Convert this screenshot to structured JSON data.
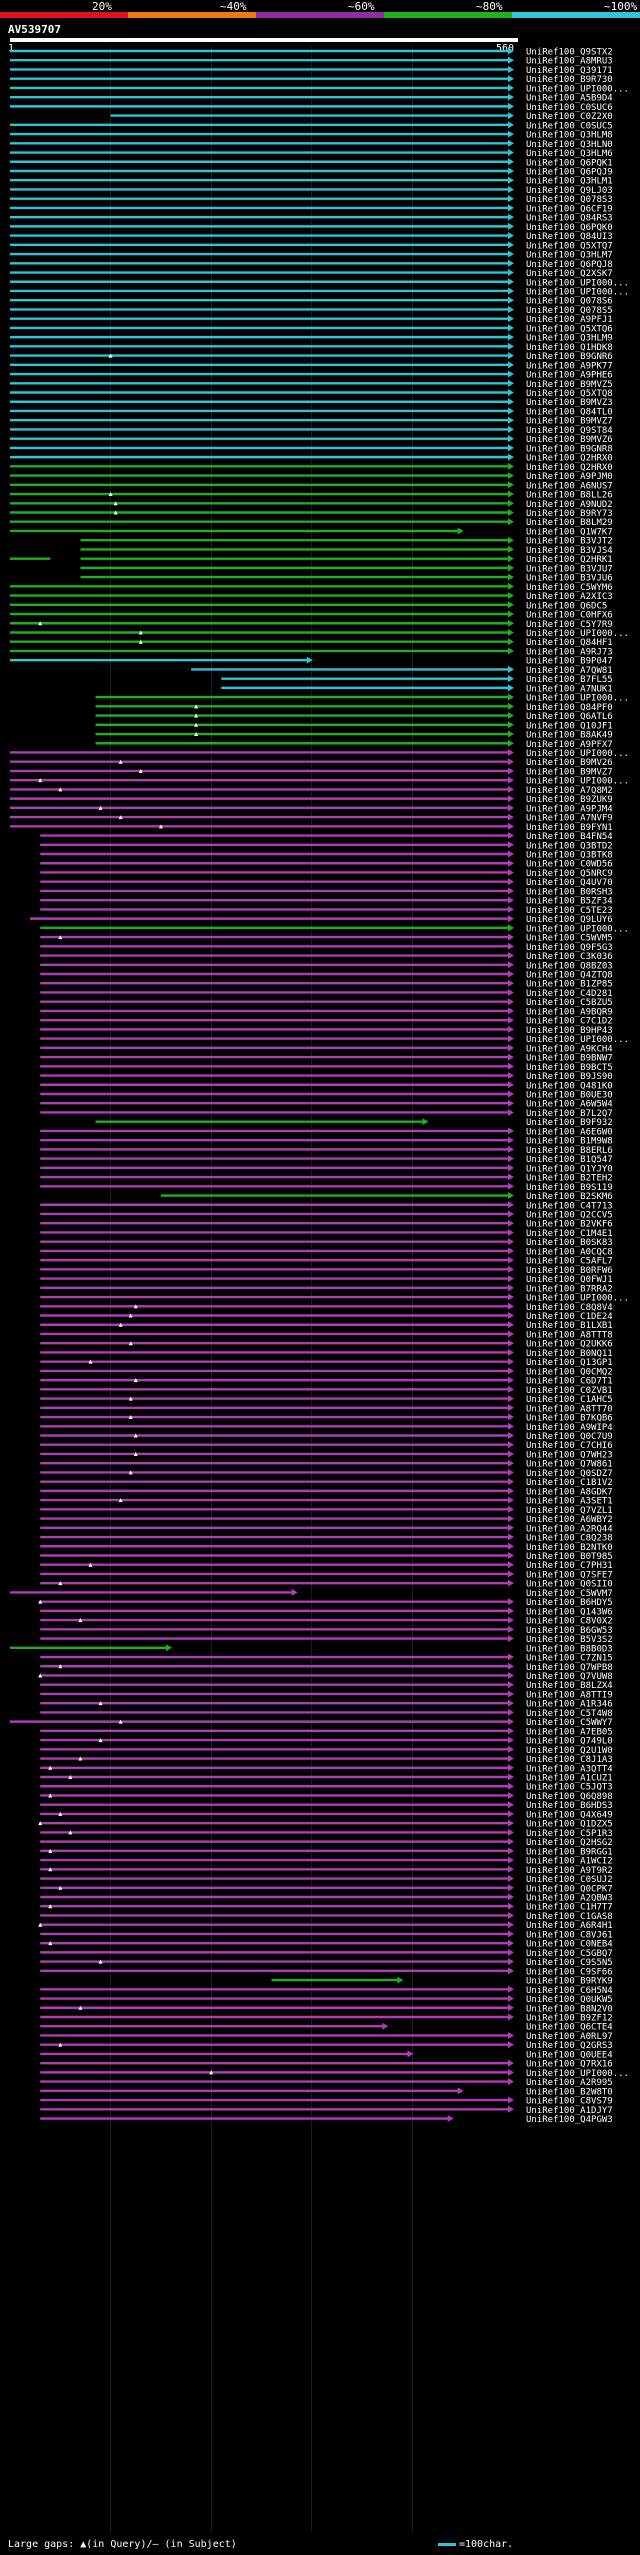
{
  "legend": {
    "labels": [
      "20%",
      "~40%",
      "~60%",
      "~80%",
      "~100%"
    ],
    "colors": [
      "#e0101e",
      "#f07a10",
      "#9030a0",
      "#20b020",
      "#30c8d8"
    ]
  },
  "query": {
    "id": "AV539707",
    "start": "1",
    "end": "560"
  },
  "hits": [
    {
      "name": "UniRef100_Q9STX2",
      "c": "cyan"
    },
    {
      "name": "UniRef100_A8MRU3",
      "c": "cyan"
    },
    {
      "name": "UniRef100_Q39171",
      "c": "cyan"
    },
    {
      "name": "UniRef100_B9R730",
      "c": "cyan"
    },
    {
      "name": "UniRef100_UPI000...",
      "c": "cyan"
    },
    {
      "name": "UniRef100_A5B9D4",
      "c": "cyan"
    },
    {
      "name": "UniRef100_C0SUC6",
      "c": "cyan"
    },
    {
      "name": "UniRef100_C0Z2X0",
      "c": "cyan",
      "s": 0.2
    },
    {
      "name": "UniRef100_C0SUC5",
      "c": "cyan"
    },
    {
      "name": "UniRef100_Q3HLM8",
      "c": "cyan"
    },
    {
      "name": "UniRef100_Q3HLN0",
      "c": "cyan"
    },
    {
      "name": "UniRef100_Q3HLM6",
      "c": "cyan"
    },
    {
      "name": "UniRef100_Q6PQK1",
      "c": "cyan"
    },
    {
      "name": "UniRef100_Q6PQJ9",
      "c": "cyan"
    },
    {
      "name": "UniRef100_Q3HLM1",
      "c": "cyan"
    },
    {
      "name": "UniRef100_Q9LJ03",
      "c": "cyan"
    },
    {
      "name": "UniRef100_Q078S3",
      "c": "cyan"
    },
    {
      "name": "UniRef100_Q6CF19",
      "c": "cyan"
    },
    {
      "name": "UniRef100_Q84RS3",
      "c": "cyan"
    },
    {
      "name": "UniRef100_Q6PQK0",
      "c": "cyan"
    },
    {
      "name": "UniRef100_Q84UI3",
      "c": "cyan"
    },
    {
      "name": "UniRef100_Q5XTQ7",
      "c": "cyan"
    },
    {
      "name": "UniRef100_Q3HLM7",
      "c": "cyan"
    },
    {
      "name": "UniRef100_Q6PQJ8",
      "c": "cyan"
    },
    {
      "name": "UniRef100_Q2XSK7",
      "c": "cyan"
    },
    {
      "name": "UniRef100_UPI000...",
      "c": "cyan"
    },
    {
      "name": "UniRef100_UPI000...",
      "c": "cyan"
    },
    {
      "name": "UniRef100_Q078S6",
      "c": "cyan"
    },
    {
      "name": "UniRef100_Q078S5",
      "c": "cyan"
    },
    {
      "name": "UniRef100_A9PFJ1",
      "c": "cyan"
    },
    {
      "name": "UniRef100_Q5XTQ6",
      "c": "cyan"
    },
    {
      "name": "UniRef100_Q3HLM9",
      "c": "cyan"
    },
    {
      "name": "UniRef100_Q1HDK8",
      "c": "cyan"
    },
    {
      "name": "UniRef100_B9GNR6",
      "c": "cyan",
      "dot": 0.2
    },
    {
      "name": "UniRef100_A9PK77",
      "c": "cyan"
    },
    {
      "name": "UniRef100_A9PHE6",
      "c": "cyan"
    },
    {
      "name": "UniRef100_B9MVZ5",
      "c": "cyan"
    },
    {
      "name": "UniRef100_Q5XTQ8",
      "c": "cyan"
    },
    {
      "name": "UniRef100_B9MVZ3",
      "c": "cyan"
    },
    {
      "name": "UniRef100_Q84TL0",
      "c": "cyan"
    },
    {
      "name": "UniRef100_B9MVZ7",
      "c": "cyan"
    },
    {
      "name": "UniRef100_Q9ST84",
      "c": "cyan"
    },
    {
      "name": "UniRef100_B9MVZ6",
      "c": "cyan"
    },
    {
      "name": "UniRef100_B9GNR8",
      "c": "cyan"
    },
    {
      "name": "UniRef100_Q2HRX0",
      "c": "cyan"
    },
    {
      "name": "UniRef100_Q2HRX0",
      "c": "green"
    },
    {
      "name": "UniRef100_A9PJM0",
      "c": "green"
    },
    {
      "name": "UniRef100_A6NUS7",
      "c": "green"
    },
    {
      "name": "UniRef100_B8LL26",
      "c": "green",
      "dot": 0.2
    },
    {
      "name": "UniRef100_A9NUD2",
      "c": "green",
      "dot": 0.21
    },
    {
      "name": "UniRef100_B9RY73",
      "c": "green",
      "dot": 0.21
    },
    {
      "name": "UniRef100_B8LM29",
      "c": "green"
    },
    {
      "name": "UniRef100_Q1W7K7",
      "c": "green",
      "e": 0.9
    },
    {
      "name": "UniRef100_B3VJT2",
      "c": "green",
      "s": 0.14
    },
    {
      "name": "UniRef100_B3VJS4",
      "c": "green",
      "s": 0.14
    },
    {
      "name": "UniRef100_Q2HRK1",
      "c": "green",
      "gap": [
        0.08,
        0.14
      ]
    },
    {
      "name": "UniRef100_B3VJU7",
      "c": "green",
      "s": 0.14
    },
    {
      "name": "UniRef100_B3VJU6",
      "c": "green",
      "s": 0.14
    },
    {
      "name": "UniRef100_C5WYM6",
      "c": "green"
    },
    {
      "name": "UniRef100_A2XIC3",
      "c": "green"
    },
    {
      "name": "UniRef100_Q6DC5",
      "c": "green"
    },
    {
      "name": "UniRef100_C0HFX6",
      "c": "green"
    },
    {
      "name": "UniRef100_C5Y7R9",
      "c": "green",
      "dot": 0.06
    },
    {
      "name": "UniRef100_UPI000...",
      "c": "green",
      "dot": 0.26
    },
    {
      "name": "UniRef100_Q84HF1",
      "c": "green",
      "dot": 0.26
    },
    {
      "name": "UniRef100_A9RJ73",
      "c": "green"
    },
    {
      "name": "UniRef100_B9P047",
      "c": "cyan",
      "e": 0.6
    },
    {
      "name": "UniRef100_A7QW81",
      "c": "cyan",
      "s": 0.36
    },
    {
      "name": "UniRef100_B7FL55",
      "c": "cyan",
      "s": 0.42
    },
    {
      "name": "UniRef100_A7NUK1",
      "c": "cyan",
      "s": 0.42
    },
    {
      "name": "UniRef100_UPI000...",
      "c": "green",
      "s": 0.17
    },
    {
      "name": "UniRef100_Q84PF0",
      "c": "green",
      "s": 0.17,
      "dot": 0.37
    },
    {
      "name": "UniRef100_Q6ATL6",
      "c": "green",
      "s": 0.17,
      "dot": 0.37
    },
    {
      "name": "UniRef100_Q10JF1",
      "c": "green",
      "s": 0.17,
      "dot": 0.37
    },
    {
      "name": "UniRef100_B8AK49",
      "c": "green",
      "s": 0.17,
      "dot": 0.37
    },
    {
      "name": "UniRef100_A9PFX7",
      "c": "green",
      "s": 0.17
    },
    {
      "name": "UniRef100_UPI000...",
      "c": "magenta"
    },
    {
      "name": "UniRef100_B9MV26",
      "c": "magenta",
      "dot": 0.22
    },
    {
      "name": "UniRef100_B9MVZ7",
      "c": "magenta",
      "dot": 0.26
    },
    {
      "name": "UniRef100_UPI000...",
      "c": "magenta",
      "dot": 0.06
    },
    {
      "name": "UniRef100_A7Q8M2",
      "c": "magenta",
      "dot": 0.1
    },
    {
      "name": "UniRef100_B9ZUK9",
      "c": "magenta"
    },
    {
      "name": "UniRef100_A9PJM4",
      "c": "magenta",
      "dot": 0.18
    },
    {
      "name": "UniRef100_A7NVF9",
      "c": "magenta",
      "dot": 0.22
    },
    {
      "name": "UniRef100_B9FYN1",
      "c": "magenta",
      "dot": 0.3
    },
    {
      "name": "UniRef100_B4FN54",
      "c": "magenta",
      "s": 0.06
    },
    {
      "name": "UniRef100_Q3BTD2",
      "c": "magenta",
      "s": 0.06
    },
    {
      "name": "UniRef100_Q3BTK8",
      "c": "magenta",
      "s": 0.06
    },
    {
      "name": "UniRef100_C0WD56",
      "c": "magenta",
      "s": 0.06
    },
    {
      "name": "UniRef100_Q5NRC9",
      "c": "magenta",
      "s": 0.06
    },
    {
      "name": "UniRef100_Q4UV70",
      "c": "magenta",
      "s": 0.06
    },
    {
      "name": "UniRef100_B0RSH3",
      "c": "magenta",
      "s": 0.06
    },
    {
      "name": "UniRef100_B5ZF34",
      "c": "magenta",
      "s": 0.06
    },
    {
      "name": "UniRef100_C5TE23",
      "c": "magenta",
      "s": 0.06
    },
    {
      "name": "UniRef100_Q9LUY6",
      "c": "magenta",
      "s": 0.04
    },
    {
      "name": "UniRef100_UPI000...",
      "c": "green",
      "s": 0.06
    },
    {
      "name": "UniRef100_C5WVM5",
      "c": "magenta",
      "s": 0.06,
      "dot": 0.1
    },
    {
      "name": "UniRef100_Q9F5G3",
      "c": "magenta",
      "s": 0.06
    },
    {
      "name": "UniRef100_C3K036",
      "c": "magenta",
      "s": 0.06
    },
    {
      "name": "UniRef100_Q8BZ03",
      "c": "magenta",
      "s": 0.06
    },
    {
      "name": "UniRef100_Q4ZTQ8",
      "c": "magenta",
      "s": 0.06
    },
    {
      "name": "UniRef100_B1ZP85",
      "c": "magenta",
      "s": 0.06
    },
    {
      "name": "UniRef100_C4D281",
      "c": "magenta",
      "s": 0.06
    },
    {
      "name": "UniRef100_C5BZU5",
      "c": "magenta",
      "s": 0.06
    },
    {
      "name": "UniRef100_A9BQR9",
      "c": "magenta",
      "s": 0.06
    },
    {
      "name": "UniRef100_C7C1D2",
      "c": "magenta",
      "s": 0.06
    },
    {
      "name": "UniRef100_B9HP43",
      "c": "magenta",
      "s": 0.06
    },
    {
      "name": "UniRef100_UPI000...",
      "c": "magenta",
      "s": 0.06
    },
    {
      "name": "UniRef100_A9KCH4",
      "c": "magenta",
      "s": 0.06
    },
    {
      "name": "UniRef100_B9BNW7",
      "c": "magenta",
      "s": 0.06
    },
    {
      "name": "UniRef100_B9BCT5",
      "c": "magenta",
      "s": 0.06
    },
    {
      "name": "UniRef100_B9JS90",
      "c": "magenta",
      "s": 0.06
    },
    {
      "name": "UniRef100_Q481K0",
      "c": "magenta",
      "s": 0.06
    },
    {
      "name": "UniRef100_B0UE30",
      "c": "magenta",
      "s": 0.06
    },
    {
      "name": "UniRef100_A6W5W4",
      "c": "magenta",
      "s": 0.06
    },
    {
      "name": "UniRef100_B7L2Q7",
      "c": "magenta",
      "s": 0.06
    },
    {
      "name": "UniRef100_B9F932",
      "c": "green",
      "s": 0.17,
      "e": 0.83
    },
    {
      "name": "UniRef100_A6E6W0",
      "c": "magenta",
      "s": 0.06
    },
    {
      "name": "UniRef100_B1M9W8",
      "c": "magenta",
      "s": 0.06
    },
    {
      "name": "UniRef100_B8ERL6",
      "c": "magenta",
      "s": 0.06
    },
    {
      "name": "UniRef100_B1Q547",
      "c": "magenta",
      "s": 0.06
    },
    {
      "name": "UniRef100_Q1YJY0",
      "c": "magenta",
      "s": 0.06
    },
    {
      "name": "UniRef100_B2TEH2",
      "c": "magenta",
      "s": 0.06
    },
    {
      "name": "UniRef100_B9S119",
      "c": "magenta",
      "s": 0.06
    },
    {
      "name": "UniRef100_B2SKM6",
      "c": "green",
      "s": 0.3
    },
    {
      "name": "UniRef100_C4T713",
      "c": "magenta",
      "s": 0.06
    },
    {
      "name": "UniRef100_Q2CCV5",
      "c": "magenta",
      "s": 0.06
    },
    {
      "name": "UniRef100_B2VKF6",
      "c": "magenta",
      "s": 0.06
    },
    {
      "name": "UniRef100_C1M4E1",
      "c": "magenta",
      "s": 0.06
    },
    {
      "name": "UniRef100_B0SK83",
      "c": "magenta",
      "s": 0.06
    },
    {
      "name": "UniRef100_A0CQC8",
      "c": "magenta",
      "s": 0.06
    },
    {
      "name": "UniRef100_C5AFL7",
      "c": "magenta",
      "s": 0.06
    },
    {
      "name": "UniRef100_B0RFW6",
      "c": "magenta",
      "s": 0.06
    },
    {
      "name": "UniRef100_Q0FWJ1",
      "c": "magenta",
      "s": 0.06
    },
    {
      "name": "UniRef100_B7RRA2",
      "c": "magenta",
      "s": 0.06
    },
    {
      "name": "UniRef100_UPI000...",
      "c": "magenta",
      "s": 0.06
    },
    {
      "name": "UniRef100_C8Q8V4",
      "c": "magenta",
      "s": 0.06,
      "dot": 0.25
    },
    {
      "name": "UniRef100_C1DE24",
      "c": "magenta",
      "s": 0.06,
      "dot": 0.24
    },
    {
      "name": "UniRef100_B1LXB1",
      "c": "magenta",
      "s": 0.06,
      "dot": 0.22
    },
    {
      "name": "UniRef100_A8TTT8",
      "c": "magenta",
      "s": 0.06
    },
    {
      "name": "UniRef100_Q2UKK6",
      "c": "magenta",
      "s": 0.06,
      "dot": 0.24
    },
    {
      "name": "UniRef100_B0NQ11",
      "c": "magenta",
      "s": 0.06
    },
    {
      "name": "UniRef100_Q13GP1",
      "c": "magenta",
      "s": 0.06,
      "dot": 0.16
    },
    {
      "name": "UniRef100_Q0CMQ2",
      "c": "magenta",
      "s": 0.06
    },
    {
      "name": "UniRef100_C6D7T1",
      "c": "magenta",
      "s": 0.06,
      "dot": 0.25
    },
    {
      "name": "UniRef100_C0ZVB1",
      "c": "magenta",
      "s": 0.06
    },
    {
      "name": "UniRef100_C1AHC5",
      "c": "magenta",
      "s": 0.06,
      "dot": 0.24
    },
    {
      "name": "UniRef100_A8TT70",
      "c": "magenta",
      "s": 0.06
    },
    {
      "name": "UniRef100_B7KQB6",
      "c": "magenta",
      "s": 0.06,
      "dot": 0.24
    },
    {
      "name": "UniRef100_A9WIP4",
      "c": "magenta",
      "s": 0.06
    },
    {
      "name": "UniRef100_Q0C7U9",
      "c": "magenta",
      "s": 0.06,
      "dot": 0.25
    },
    {
      "name": "UniRef100_C7CHI6",
      "c": "magenta",
      "s": 0.06
    },
    {
      "name": "UniRef100_Q7WH23",
      "c": "magenta",
      "s": 0.06,
      "dot": 0.25
    },
    {
      "name": "UniRef100_Q7W861",
      "c": "magenta",
      "s": 0.06
    },
    {
      "name": "UniRef100_Q0SDZ7",
      "c": "magenta",
      "s": 0.06,
      "dot": 0.24
    },
    {
      "name": "UniRef100_C1B1V2",
      "c": "magenta",
      "s": 0.06
    },
    {
      "name": "UniRef100_A8GDK7",
      "c": "magenta",
      "s": 0.06
    },
    {
      "name": "UniRef100_A3SET1",
      "c": "magenta",
      "s": 0.06,
      "dot": 0.22
    },
    {
      "name": "UniRef100_Q7VZL1",
      "c": "magenta",
      "s": 0.06
    },
    {
      "name": "UniRef100_A6WBY2",
      "c": "magenta",
      "s": 0.06
    },
    {
      "name": "UniRef100_A2RQ44",
      "c": "magenta",
      "s": 0.06
    },
    {
      "name": "UniRef100_C8Q238",
      "c": "magenta",
      "s": 0.06
    },
    {
      "name": "UniRef100_B2NTK0",
      "c": "magenta",
      "s": 0.06
    },
    {
      "name": "UniRef100_B0T985",
      "c": "magenta",
      "s": 0.06
    },
    {
      "name": "UniRef100_C7PH31",
      "c": "magenta",
      "s": 0.06,
      "dot": 0.16
    },
    {
      "name": "UniRef100_Q7SFE7",
      "c": "magenta",
      "s": 0.06
    },
    {
      "name": "UniRef100_Q0SII0",
      "c": "magenta",
      "s": 0.06,
      "dot": 0.1
    },
    {
      "name": "UniRef100_C5WVM7",
      "c": "magenta",
      "e": 0.57
    },
    {
      "name": "UniRef100_B6HDY5",
      "c": "magenta",
      "s": 0.06,
      "dot": 0.06
    },
    {
      "name": "UniRef100_Q143W6",
      "c": "magenta",
      "s": 0.06
    },
    {
      "name": "UniRef100_C8V0X2",
      "c": "magenta",
      "s": 0.06,
      "dot": 0.14
    },
    {
      "name": "UniRef100_B6GW53",
      "c": "magenta",
      "s": 0.06
    },
    {
      "name": "UniRef100_B5V3S2",
      "c": "magenta",
      "s": 0.06
    },
    {
      "name": "UniRef100_B8B0D3",
      "c": "green",
      "e": 0.32
    },
    {
      "name": "UniRef100_C7ZN15",
      "c": "magenta",
      "s": 0.06
    },
    {
      "name": "UniRef100_Q7WPB8",
      "c": "magenta",
      "s": 0.06,
      "dot": 0.1
    },
    {
      "name": "UniRef100_Q7VUW8",
      "c": "magenta",
      "s": 0.06,
      "dot": 0.06
    },
    {
      "name": "UniRef100_B8LZX4",
      "c": "magenta",
      "s": 0.06
    },
    {
      "name": "UniRef100_A8TTI9",
      "c": "magenta",
      "s": 0.06
    },
    {
      "name": "UniRef100_A1R346",
      "c": "magenta",
      "s": 0.06,
      "dot": 0.18
    },
    {
      "name": "UniRef100_C5T4W8",
      "c": "magenta",
      "s": 0.06
    },
    {
      "name": "UniRef100_C5WWY7",
      "c": "magenta",
      "dot": 0.22
    },
    {
      "name": "UniRef100_A7EB05",
      "c": "magenta",
      "s": 0.06
    },
    {
      "name": "UniRef100_Q749L0",
      "c": "magenta",
      "s": 0.06,
      "dot": 0.18
    },
    {
      "name": "UniRef100_Q2U1W0",
      "c": "magenta",
      "s": 0.06
    },
    {
      "name": "UniRef100_C8J1A3",
      "c": "magenta",
      "s": 0.06,
      "dot": 0.14
    },
    {
      "name": "UniRef100_A3QTT4",
      "c": "magenta",
      "s": 0.06,
      "dot": 0.08
    },
    {
      "name": "UniRef100_A1CUZ1",
      "c": "magenta",
      "s": 0.06,
      "dot": 0.12
    },
    {
      "name": "UniRef100_C5JQT3",
      "c": "magenta",
      "s": 0.06
    },
    {
      "name": "UniRef100_Q6Q898",
      "c": "magenta",
      "s": 0.06,
      "dot": 0.08
    },
    {
      "name": "UniRef100_B6HDS3",
      "c": "magenta",
      "s": 0.06
    },
    {
      "name": "UniRef100_Q4X649",
      "c": "magenta",
      "s": 0.06,
      "dot": 0.1
    },
    {
      "name": "UniRef100_Q1DZX5",
      "c": "magenta",
      "s": 0.06,
      "dot": 0.06
    },
    {
      "name": "UniRef100_C5P1R3",
      "c": "magenta",
      "s": 0.06,
      "dot": 0.12
    },
    {
      "name": "UniRef100_Q2HSG2",
      "c": "magenta",
      "s": 0.06
    },
    {
      "name": "UniRef100_B9RGG1",
      "c": "magenta",
      "s": 0.06,
      "dot": 0.08
    },
    {
      "name": "UniRef100_A1WCI2",
      "c": "magenta",
      "s": 0.06
    },
    {
      "name": "UniRef100_A9T9R2",
      "c": "magenta",
      "s": 0.06,
      "dot": 0.08
    },
    {
      "name": "UniRef100_C0SUJ2",
      "c": "magenta",
      "s": 0.06
    },
    {
      "name": "UniRef100_Q0CPK7",
      "c": "magenta",
      "s": 0.06,
      "dot": 0.1
    },
    {
      "name": "UniRef100_A2QBW3",
      "c": "magenta",
      "s": 0.06
    },
    {
      "name": "UniRef100_C1H7T7",
      "c": "magenta",
      "s": 0.06,
      "dot": 0.08
    },
    {
      "name": "UniRef100_C1GAS8",
      "c": "magenta",
      "s": 0.06
    },
    {
      "name": "UniRef100_A6R4H1",
      "c": "magenta",
      "s": 0.06,
      "dot": 0.06
    },
    {
      "name": "UniRef100_C8VJ61",
      "c": "magenta",
      "s": 0.06
    },
    {
      "name": "UniRef100_C0NEB4",
      "c": "magenta",
      "s": 0.06,
      "dot": 0.08
    },
    {
      "name": "UniRef100_C5GBQ7",
      "c": "magenta",
      "s": 0.06
    },
    {
      "name": "UniRef100_C9S5N5",
      "c": "magenta",
      "s": 0.06,
      "dot": 0.18
    },
    {
      "name": "UniRef100_C9SF66",
      "c": "magenta",
      "s": 0.06
    },
    {
      "name": "UniRef100_B9RYK9",
      "c": "green",
      "s": 0.52,
      "e": 0.78
    },
    {
      "name": "UniRef100_C6H5N4",
      "c": "magenta",
      "s": 0.06
    },
    {
      "name": "UniRef100_Q0UKW5",
      "c": "magenta",
      "s": 0.06
    },
    {
      "name": "UniRef100_B8N2V0",
      "c": "magenta",
      "s": 0.06,
      "dot": 0.14
    },
    {
      "name": "UniRef100_B9ZF12",
      "c": "magenta",
      "s": 0.06
    },
    {
      "name": "UniRef100_Q6CTE4",
      "c": "magenta",
      "s": 0.06,
      "e": 0.75
    },
    {
      "name": "UniRef100_A0RL97",
      "c": "magenta",
      "s": 0.06
    },
    {
      "name": "UniRef100_Q2GRS3",
      "c": "magenta",
      "s": 0.06,
      "dot": 0.1
    },
    {
      "name": "UniRef100_Q0UEE4",
      "c": "magenta",
      "s": 0.06,
      "e": 0.8
    },
    {
      "name": "UniRef100_Q7RX16",
      "c": "magenta",
      "s": 0.06
    },
    {
      "name": "UniRef100_UPI000...",
      "c": "magenta",
      "s": 0.06,
      "dot": 0.4
    },
    {
      "name": "UniRef100_A2R995",
      "c": "magenta",
      "s": 0.06
    },
    {
      "name": "UniRef100_B2W8T0",
      "c": "magenta",
      "s": 0.06,
      "e": 0.9
    },
    {
      "name": "UniRef100_C8VS79",
      "c": "magenta",
      "s": 0.06
    },
    {
      "name": "UniRef100_A1DJY7",
      "c": "magenta",
      "s": 0.06
    },
    {
      "name": "UniRef100_Q4PGW3",
      "c": "magenta",
      "s": 0.06,
      "e": 0.88
    }
  ],
  "footer": {
    "left": "Large gaps: ▲(in Query)/– (in Subject)",
    "right": "=100char."
  }
}
